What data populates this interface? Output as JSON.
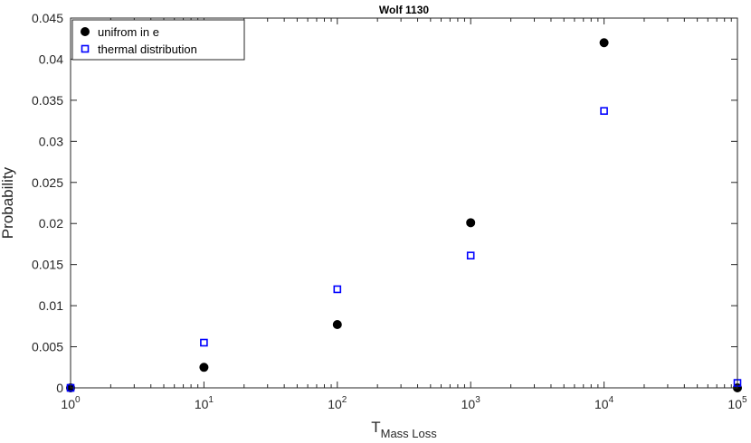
{
  "chart_data": {
    "type": "scatter",
    "title": "Wolf 1130",
    "xlabel": {
      "base": "T",
      "subscript": "Mass Loss"
    },
    "ylabel": "Probability",
    "x_scale": "log",
    "xlim": [
      1,
      100000
    ],
    "ylim": [
      0,
      0.045
    ],
    "x_ticks": [
      {
        "value": 1,
        "base": "10",
        "exp": "0"
      },
      {
        "value": 10,
        "base": "10",
        "exp": "1"
      },
      {
        "value": 100,
        "base": "10",
        "exp": "2"
      },
      {
        "value": 1000,
        "base": "10",
        "exp": "3"
      },
      {
        "value": 10000,
        "base": "10",
        "exp": "4"
      },
      {
        "value": 100000,
        "base": "10",
        "exp": "5"
      }
    ],
    "y_ticks": [
      {
        "value": 0,
        "label": "0"
      },
      {
        "value": 0.005,
        "label": "0.005"
      },
      {
        "value": 0.01,
        "label": "0.01"
      },
      {
        "value": 0.015,
        "label": "0.015"
      },
      {
        "value": 0.02,
        "label": "0.02"
      },
      {
        "value": 0.025,
        "label": "0.025"
      },
      {
        "value": 0.03,
        "label": "0.03"
      },
      {
        "value": 0.035,
        "label": "0.035"
      },
      {
        "value": 0.04,
        "label": "0.04"
      },
      {
        "value": 0.045,
        "label": "0.045"
      }
    ],
    "grid": false,
    "legend_position": "top-left",
    "series": [
      {
        "name": "unifrom in e",
        "marker": "filled-circle",
        "color": "#000000",
        "x": [
          1,
          10,
          100,
          1000,
          10000,
          100000
        ],
        "y": [
          0,
          0.0025,
          0.0077,
          0.0201,
          0.042,
          0
        ]
      },
      {
        "name": "thermal distribution",
        "marker": "open-square",
        "color": "#0000ff",
        "x": [
          1,
          10,
          100,
          1000,
          10000,
          100000
        ],
        "y": [
          0,
          0.0055,
          0.012,
          0.0161,
          0.0337,
          0.0006
        ]
      }
    ]
  }
}
